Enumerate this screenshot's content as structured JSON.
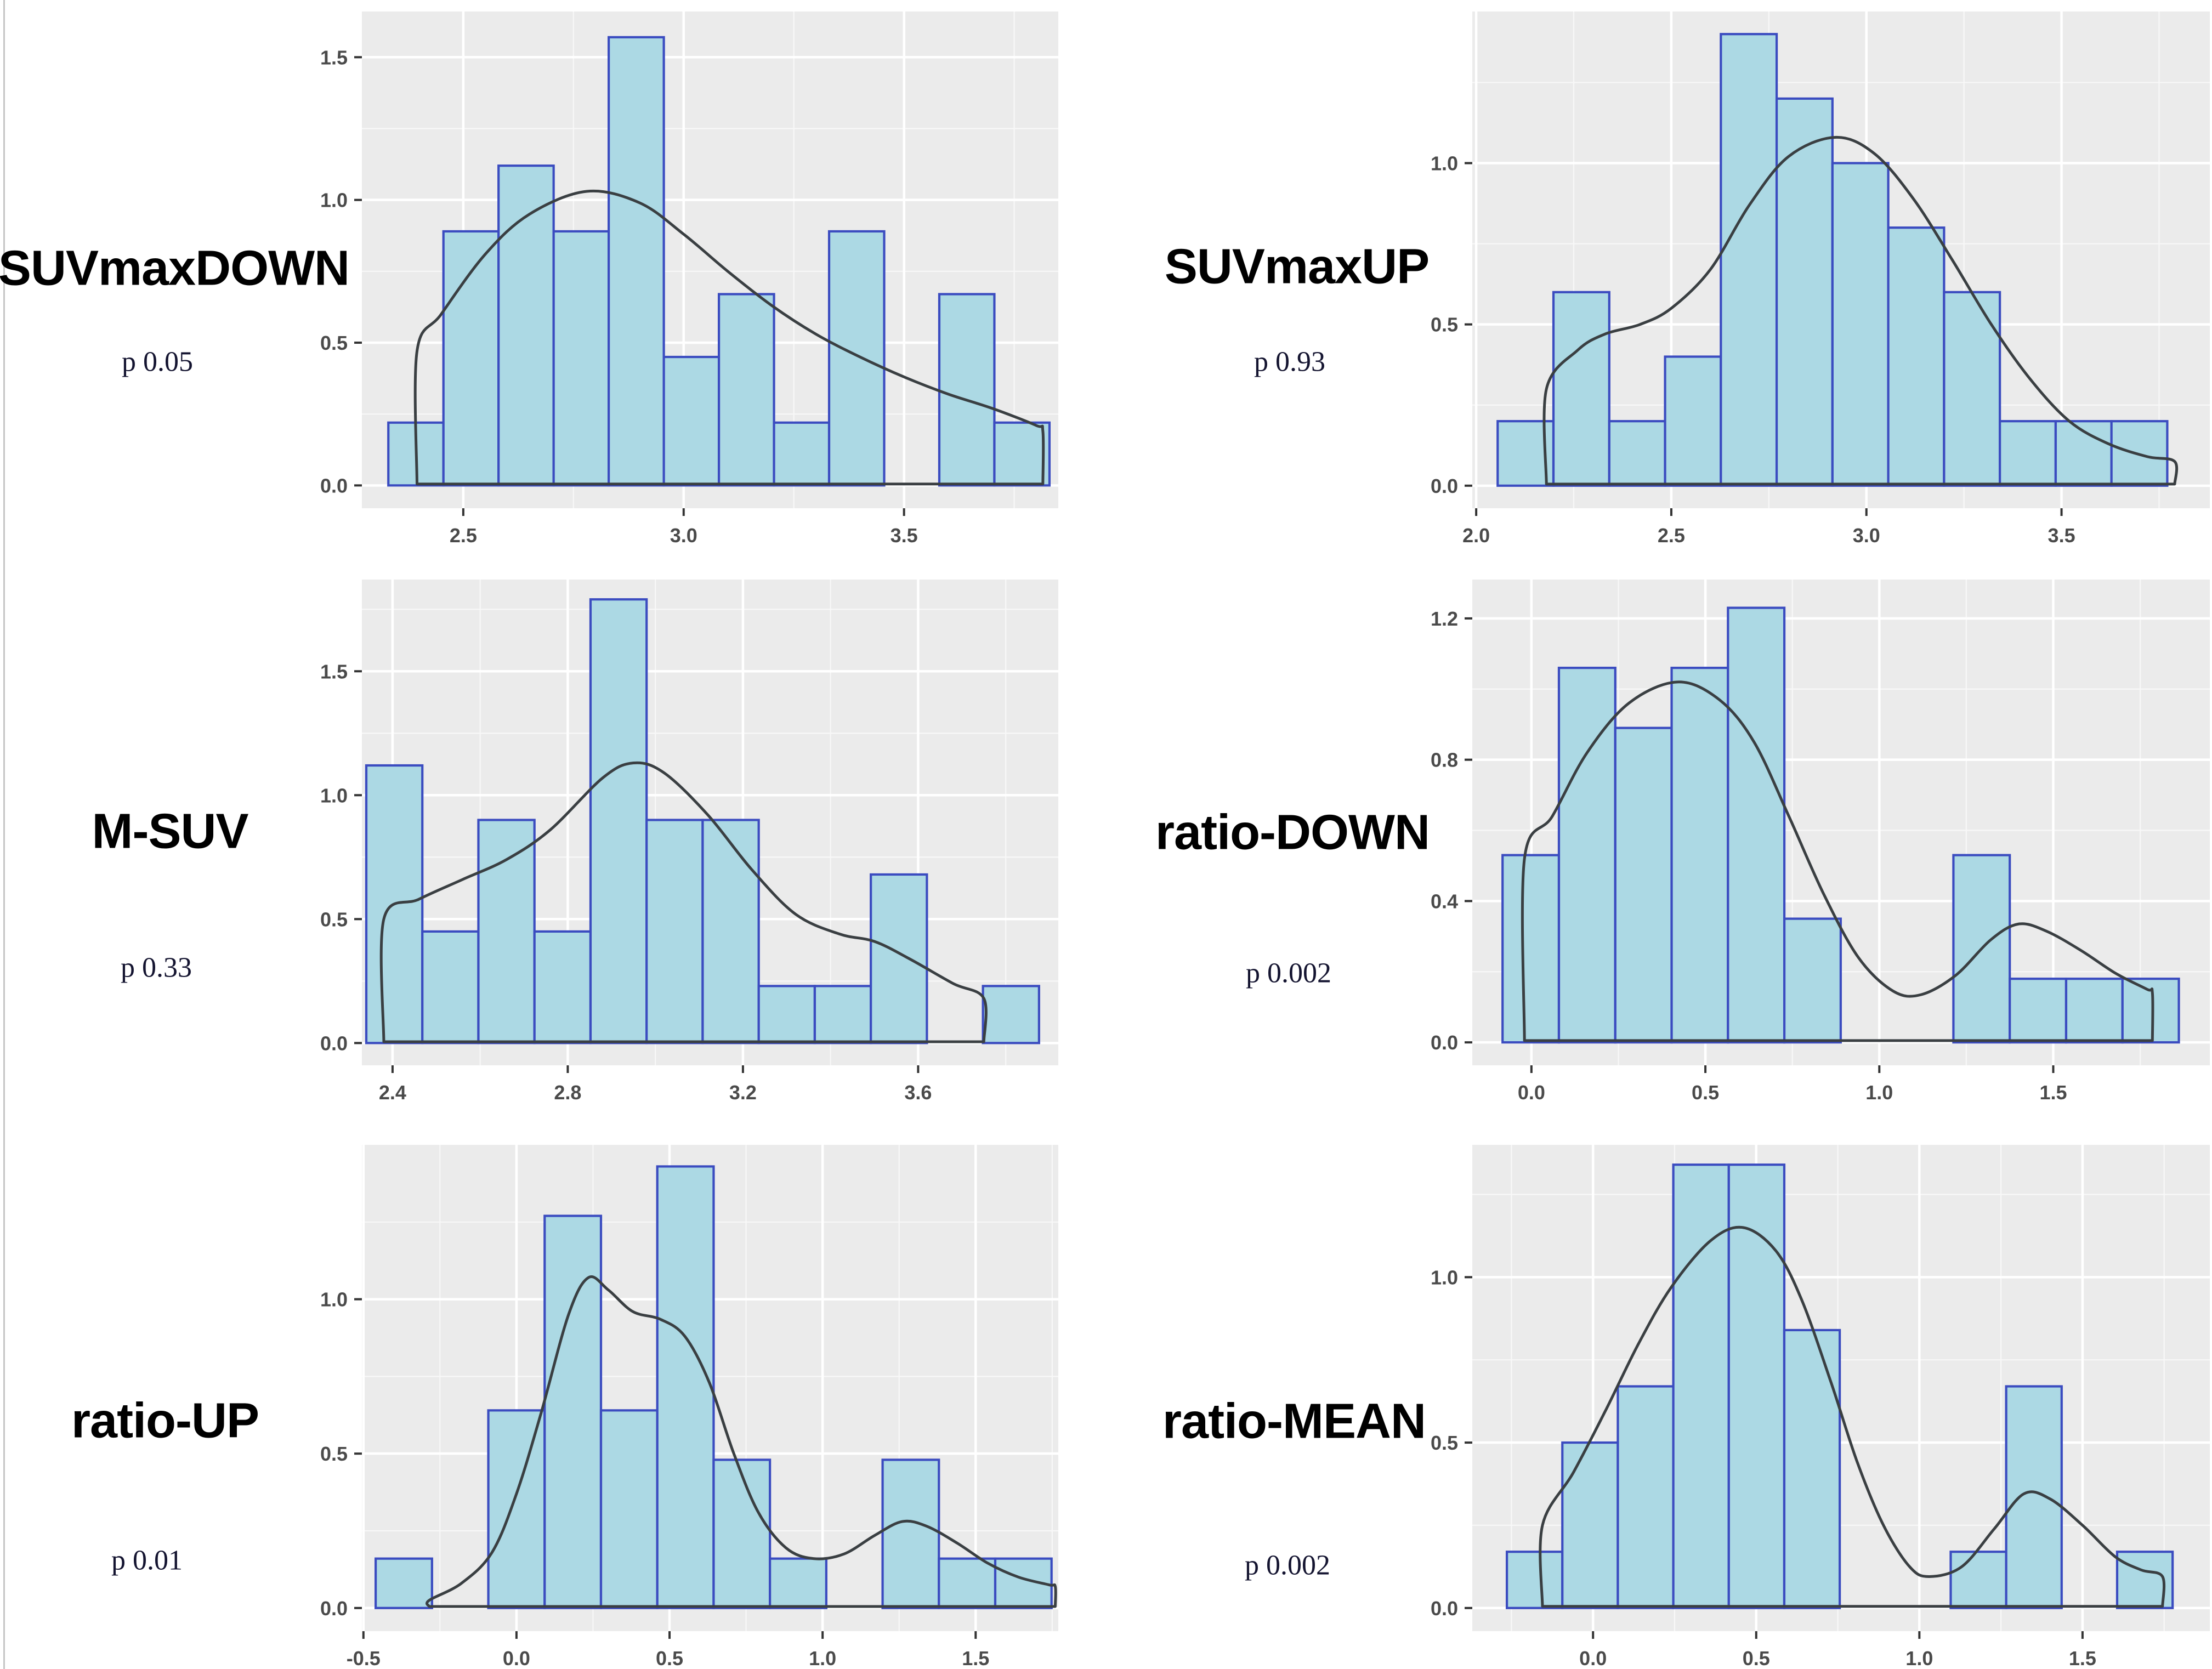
{
  "figure": {
    "description": "Grid of six histograms with density curves",
    "rows": 3,
    "cols": 2
  },
  "colors": {
    "panel_bg": "#ebebeb",
    "grid_major": "#ffffff",
    "grid_minor": "#f8f8f8",
    "bar_fill": "#acd9e4",
    "bar_stroke": "#3b4cc0",
    "curve": "#3a3f42",
    "tick_mark": "#333333",
    "tick_label": "#4a4a4a",
    "title": "#000000",
    "p_text": "#141430",
    "page_border": "#c6c6c6"
  },
  "chart_data": [
    {
      "type": "bar",
      "subtype": "histogram_with_density",
      "title": "SUVmaxDOWN",
      "p_value": "p 0.05",
      "xlabel": "",
      "ylabel": "",
      "x_domain": [
        2.27,
        3.85
      ],
      "y_domain": [
        -0.08,
        1.66
      ],
      "x_ticks": [
        "2.5",
        "3.0",
        "3.5"
      ],
      "y_ticks": [
        "0.0",
        "0.5",
        "1.0",
        "1.5"
      ],
      "bin_width": 0.125,
      "bars": [
        [
          2.33,
          0.22
        ],
        [
          2.455,
          0.89
        ],
        [
          2.58,
          1.12
        ],
        [
          2.705,
          0.89
        ],
        [
          2.83,
          1.57
        ],
        [
          2.955,
          0.45
        ],
        [
          3.08,
          0.67
        ],
        [
          3.205,
          0.22
        ],
        [
          3.33,
          0.89
        ],
        [
          3.58,
          0.67
        ],
        [
          3.705,
          0.22
        ]
      ],
      "curve": [
        [
          2.395,
          0.005
        ],
        [
          2.395,
          0.47
        ],
        [
          2.45,
          0.6
        ],
        [
          2.55,
          0.81
        ],
        [
          2.65,
          0.95
        ],
        [
          2.78,
          1.03
        ],
        [
          2.9,
          0.99
        ],
        [
          3.0,
          0.88
        ],
        [
          3.1,
          0.75
        ],
        [
          3.2,
          0.63
        ],
        [
          3.3,
          0.53
        ],
        [
          3.4,
          0.45
        ],
        [
          3.5,
          0.38
        ],
        [
          3.6,
          0.32
        ],
        [
          3.7,
          0.27
        ],
        [
          3.8,
          0.21
        ],
        [
          3.815,
          0.19
        ],
        [
          3.815,
          0.005
        ]
      ]
    },
    {
      "type": "bar",
      "subtype": "histogram_with_density",
      "title": "SUVmaxUP",
      "p_value": "p 0.93",
      "xlabel": "",
      "ylabel": "",
      "x_domain": [
        1.99,
        3.88
      ],
      "y_domain": [
        -0.07,
        1.47
      ],
      "x_ticks": [
        "2.0",
        "2.5",
        "3.0",
        "3.5"
      ],
      "y_ticks": [
        "0.0",
        "0.5",
        "1.0"
      ],
      "bin_width": 0.143,
      "bars": [
        [
          2.055,
          0.2
        ],
        [
          2.198,
          0.6
        ],
        [
          2.341,
          0.2
        ],
        [
          2.484,
          0.4
        ],
        [
          2.627,
          1.4
        ],
        [
          2.77,
          1.2
        ],
        [
          2.913,
          1.0
        ],
        [
          3.056,
          0.8
        ],
        [
          3.199,
          0.6
        ],
        [
          3.342,
          0.2
        ],
        [
          3.485,
          0.2
        ],
        [
          3.628,
          0.2
        ]
      ],
      "curve": [
        [
          2.18,
          0.005
        ],
        [
          2.18,
          0.3
        ],
        [
          2.26,
          0.42
        ],
        [
          2.33,
          0.47
        ],
        [
          2.42,
          0.5
        ],
        [
          2.5,
          0.55
        ],
        [
          2.6,
          0.67
        ],
        [
          2.7,
          0.87
        ],
        [
          2.8,
          1.02
        ],
        [
          2.92,
          1.08
        ],
        [
          3.02,
          1.03
        ],
        [
          3.12,
          0.89
        ],
        [
          3.22,
          0.7
        ],
        [
          3.32,
          0.5
        ],
        [
          3.42,
          0.33
        ],
        [
          3.52,
          0.2
        ],
        [
          3.62,
          0.13
        ],
        [
          3.72,
          0.09
        ],
        [
          3.79,
          0.075
        ],
        [
          3.79,
          0.005
        ]
      ]
    },
    {
      "type": "bar",
      "subtype": "histogram_with_density",
      "title": "M-SUV",
      "p_value": "p 0.33",
      "xlabel": "",
      "ylabel": "",
      "x_domain": [
        2.33,
        3.92
      ],
      "y_domain": [
        -0.09,
        1.87
      ],
      "x_ticks": [
        "2.4",
        "2.8",
        "3.2",
        "3.6"
      ],
      "y_ticks": [
        "0.0",
        "0.5",
        "1.0",
        "1.5"
      ],
      "bin_width": 0.128,
      "bars": [
        [
          2.34,
          1.12
        ],
        [
          2.468,
          0.45
        ],
        [
          2.596,
          0.9
        ],
        [
          2.724,
          0.45
        ],
        [
          2.852,
          1.79
        ],
        [
          2.98,
          0.9
        ],
        [
          3.108,
          0.9
        ],
        [
          3.236,
          0.23
        ],
        [
          3.364,
          0.23
        ],
        [
          3.492,
          0.68
        ],
        [
          3.748,
          0.23
        ]
      ],
      "curve": [
        [
          2.38,
          0.005
        ],
        [
          2.38,
          0.5
        ],
        [
          2.46,
          0.58
        ],
        [
          2.56,
          0.66
        ],
        [
          2.66,
          0.74
        ],
        [
          2.76,
          0.86
        ],
        [
          2.88,
          1.07
        ],
        [
          2.95,
          1.13
        ],
        [
          3.02,
          1.09
        ],
        [
          3.12,
          0.92
        ],
        [
          3.22,
          0.7
        ],
        [
          3.32,
          0.52
        ],
        [
          3.42,
          0.44
        ],
        [
          3.5,
          0.41
        ],
        [
          3.58,
          0.34
        ],
        [
          3.68,
          0.24
        ],
        [
          3.75,
          0.18
        ],
        [
          3.75,
          0.005
        ]
      ]
    },
    {
      "type": "bar",
      "subtype": "histogram_with_density",
      "title": "ratio-DOWN",
      "p_value": "p 0.002",
      "xlabel": "",
      "ylabel": "",
      "x_domain": [
        -0.17,
        1.95
      ],
      "y_domain": [
        -0.065,
        1.31
      ],
      "x_ticks": [
        "0.0",
        "0.5",
        "1.0",
        "1.5"
      ],
      "y_ticks": [
        "0.0",
        "0.4",
        "0.8",
        "1.2"
      ],
      "bin_width": 0.162,
      "bars": [
        [
          -0.083,
          0.53
        ],
        [
          0.079,
          1.06
        ],
        [
          0.241,
          0.89
        ],
        [
          0.403,
          1.06
        ],
        [
          0.565,
          1.23
        ],
        [
          0.727,
          0.35
        ],
        [
          1.213,
          0.53
        ],
        [
          1.375,
          0.18
        ],
        [
          1.537,
          0.18
        ],
        [
          1.699,
          0.18
        ]
      ],
      "curve": [
        [
          -0.02,
          0.005
        ],
        [
          -0.02,
          0.52
        ],
        [
          0.06,
          0.64
        ],
        [
          0.16,
          0.82
        ],
        [
          0.28,
          0.96
        ],
        [
          0.42,
          1.02
        ],
        [
          0.54,
          0.97
        ],
        [
          0.64,
          0.85
        ],
        [
          0.74,
          0.64
        ],
        [
          0.84,
          0.42
        ],
        [
          0.94,
          0.24
        ],
        [
          1.04,
          0.145
        ],
        [
          1.12,
          0.135
        ],
        [
          1.22,
          0.19
        ],
        [
          1.32,
          0.29
        ],
        [
          1.4,
          0.335
        ],
        [
          1.48,
          0.315
        ],
        [
          1.58,
          0.26
        ],
        [
          1.68,
          0.195
        ],
        [
          1.77,
          0.15
        ],
        [
          1.785,
          0.14
        ],
        [
          1.785,
          0.005
        ]
      ]
    },
    {
      "type": "bar",
      "subtype": "histogram_with_density",
      "title": "ratio-UP",
      "p_value": "p 0.01",
      "xlabel": "",
      "ylabel": "",
      "x_domain": [
        -0.505,
        1.77
      ],
      "y_domain": [
        -0.075,
        1.5
      ],
      "x_ticks": [
        "-0.5",
        "0.0",
        "0.5",
        "1.0",
        "1.5"
      ],
      "y_ticks": [
        "0.0",
        "0.5",
        "1.0"
      ],
      "bin_width": 0.184,
      "bars": [
        [
          -0.46,
          0.16
        ],
        [
          -0.092,
          0.64
        ],
        [
          0.092,
          1.27
        ],
        [
          0.276,
          0.64
        ],
        [
          0.46,
          1.43
        ],
        [
          0.644,
          0.48
        ],
        [
          0.828,
          0.16
        ],
        [
          1.196,
          0.48
        ],
        [
          1.38,
          0.16
        ],
        [
          1.564,
          0.16
        ]
      ],
      "curve": [
        [
          -0.285,
          0.005
        ],
        [
          -0.285,
          0.025
        ],
        [
          -0.18,
          0.08
        ],
        [
          -0.08,
          0.18
        ],
        [
          0.0,
          0.37
        ],
        [
          0.08,
          0.63
        ],
        [
          0.17,
          0.95
        ],
        [
          0.235,
          1.07
        ],
        [
          0.3,
          1.03
        ],
        [
          0.38,
          0.96
        ],
        [
          0.47,
          0.935
        ],
        [
          0.55,
          0.88
        ],
        [
          0.63,
          0.73
        ],
        [
          0.71,
          0.5
        ],
        [
          0.79,
          0.31
        ],
        [
          0.88,
          0.195
        ],
        [
          0.97,
          0.16
        ],
        [
          1.07,
          0.175
        ],
        [
          1.17,
          0.235
        ],
        [
          1.26,
          0.28
        ],
        [
          1.34,
          0.265
        ],
        [
          1.44,
          0.21
        ],
        [
          1.54,
          0.145
        ],
        [
          1.64,
          0.1
        ],
        [
          1.74,
          0.075
        ],
        [
          1.76,
          0.07
        ],
        [
          1.76,
          0.005
        ]
      ]
    },
    {
      "type": "bar",
      "subtype": "histogram_with_density",
      "title": "ratio-MEAN",
      "p_value": "p 0.002",
      "xlabel": "",
      "ylabel": "",
      "x_domain": [
        -0.37,
        1.89
      ],
      "y_domain": [
        -0.07,
        1.4
      ],
      "x_ticks": [
        "0.0",
        "0.5",
        "1.0",
        "1.5"
      ],
      "y_ticks": [
        "0.0",
        "0.5",
        "1.0"
      ],
      "bin_width": 0.17,
      "bars": [
        [
          -0.264,
          0.17
        ],
        [
          -0.094,
          0.5
        ],
        [
          0.076,
          0.67
        ],
        [
          0.246,
          1.34
        ],
        [
          0.416,
          1.34
        ],
        [
          0.586,
          0.84
        ],
        [
          1.096,
          0.17
        ],
        [
          1.266,
          0.67
        ],
        [
          1.606,
          0.17
        ]
      ],
      "curve": [
        [
          -0.155,
          0.005
        ],
        [
          -0.155,
          0.25
        ],
        [
          -0.06,
          0.41
        ],
        [
          0.04,
          0.6
        ],
        [
          0.14,
          0.8
        ],
        [
          0.24,
          0.97
        ],
        [
          0.36,
          1.11
        ],
        [
          0.46,
          1.15
        ],
        [
          0.56,
          1.08
        ],
        [
          0.64,
          0.93
        ],
        [
          0.73,
          0.68
        ],
        [
          0.81,
          0.44
        ],
        [
          0.89,
          0.25
        ],
        [
          0.97,
          0.125
        ],
        [
          1.03,
          0.095
        ],
        [
          1.13,
          0.125
        ],
        [
          1.23,
          0.24
        ],
        [
          1.32,
          0.345
        ],
        [
          1.4,
          0.33
        ],
        [
          1.5,
          0.25
        ],
        [
          1.6,
          0.155
        ],
        [
          1.68,
          0.115
        ],
        [
          1.745,
          0.095
        ],
        [
          1.745,
          0.005
        ]
      ]
    }
  ]
}
